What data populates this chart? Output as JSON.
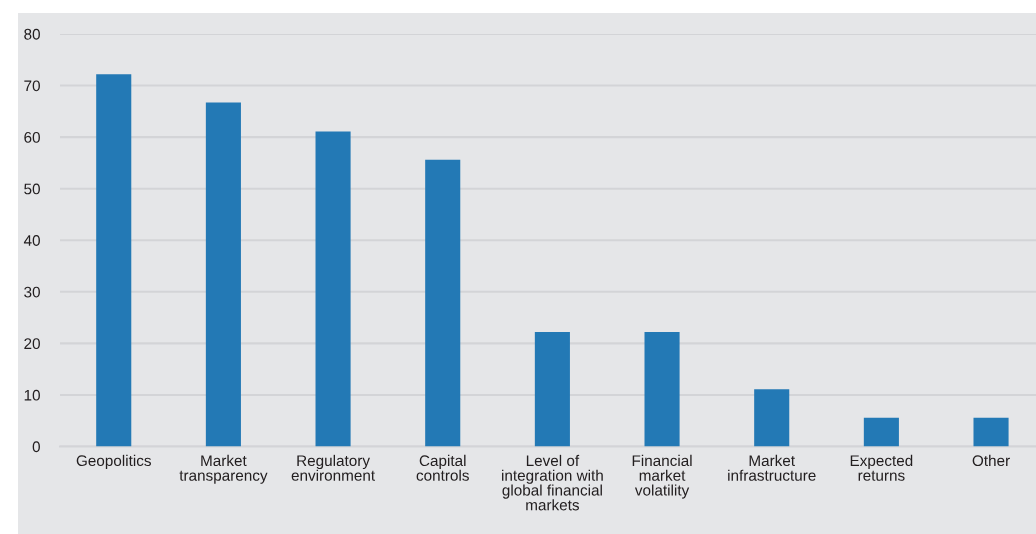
{
  "chart_data": {
    "type": "bar",
    "categories": [
      "Geopolitics",
      "Market\ntransparency",
      "Regulatory\nenvironment",
      "Capital\ncontrols",
      "Level of\nintegration with\nglobal financial\nmarkets",
      "Financial\nmarket\nvolatility",
      "Market\ninfrastructure",
      "Expected\nreturns",
      "Other"
    ],
    "values": [
      72.2,
      66.7,
      61.1,
      55.6,
      22.2,
      22.2,
      11.1,
      5.6,
      5.6
    ],
    "color": "#2379b5",
    "ylim": [
      0,
      80
    ],
    "yticks": [
      0,
      10,
      20,
      30,
      40,
      50,
      60,
      70,
      80
    ],
    "grid": "y"
  }
}
